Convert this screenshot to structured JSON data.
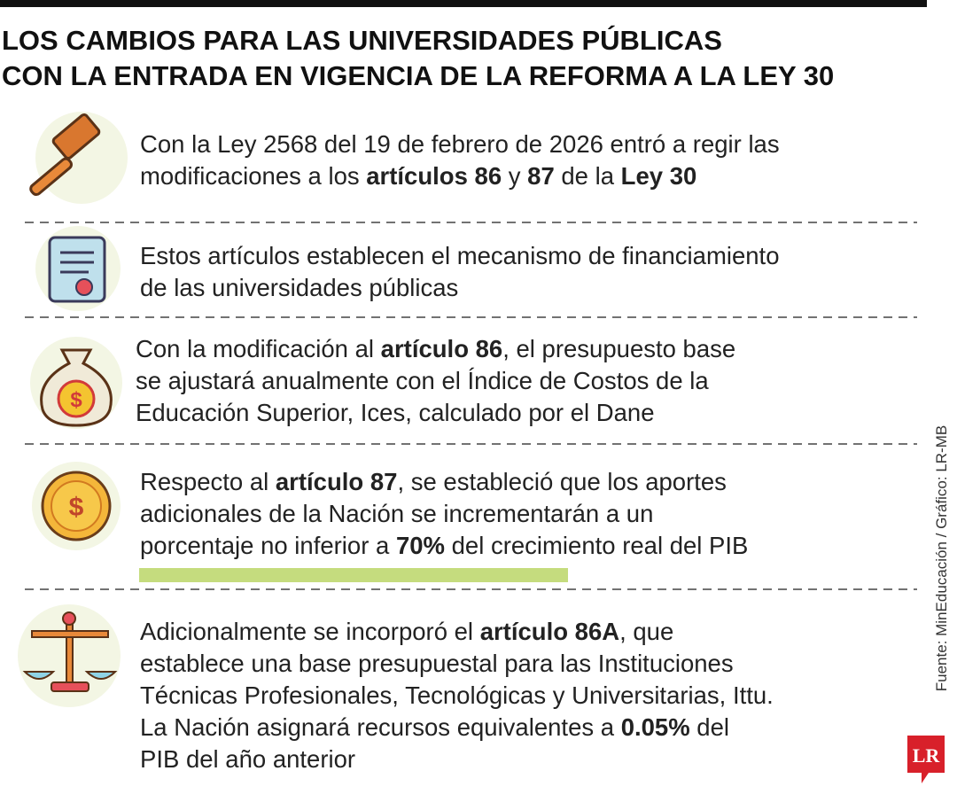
{
  "header": {
    "title_lines": [
      "LOS CAMBIOS PARA LAS UNIVERSIDADES PÚBLICAS",
      "CON LA ENTRADA EN VIGENCIA DE LA REFORMA A LA LEY 30"
    ]
  },
  "items": [
    {
      "lines": [
        [
          {
            "text": "Con la Ley 2568 del 19 de febrero de 2026 entró a regir las"
          }
        ],
        [
          {
            "text": "modificaciones a los "
          },
          {
            "text": "artículos 86",
            "bold": true
          },
          {
            "text": " y "
          },
          {
            "text": "87",
            "bold": true
          },
          {
            "text": " de la "
          },
          {
            "text": "Ley 30",
            "bold": true
          }
        ]
      ]
    },
    {
      "lines": [
        [
          {
            "text": "Estos artículos establecen el mecanismo de financiamiento"
          }
        ],
        [
          {
            "text": "de las universidades públicas"
          }
        ]
      ]
    },
    {
      "lines": [
        [
          {
            "text": "Con la modificación al "
          },
          {
            "text": "artículo 86",
            "bold": true
          },
          {
            "text": ", el presupuesto base"
          }
        ],
        [
          {
            "text": "se ajustará anualmente con el Índice de Costos de la"
          }
        ],
        [
          {
            "text": "Educación Superior, Ices, calculado por el Dane"
          }
        ]
      ]
    },
    {
      "lines": [
        [
          {
            "text": "Respecto al "
          },
          {
            "text": "artículo 87",
            "bold": true
          },
          {
            "text": ", se estableció que los aportes"
          }
        ],
        [
          {
            "text": "adicionales de la Nación se incrementarán a un"
          }
        ],
        [
          {
            "text": "porcentaje no inferior a "
          },
          {
            "text": "70%",
            "bold": true
          },
          {
            "text": " del crecimiento real del PIB"
          }
        ]
      ]
    },
    {
      "lines": [
        [
          {
            "text": "Adicionalmente se incorporó el "
          },
          {
            "text": "artículo 86A",
            "bold": true
          },
          {
            "text": ", que"
          }
        ],
        [
          {
            "text": "establece una base presupuestal para las Instituciones"
          }
        ],
        [
          {
            "text": "Técnicas Profesionales, Tecnológicas y Universitarias, Ittu."
          }
        ],
        [
          {
            "text": "La Nación asignará recursos equivalentes a "
          },
          {
            "text": "0.05%",
            "bold": true
          },
          {
            "text": " del"
          }
        ],
        [
          {
            "text": "PIB del año anterior"
          }
        ]
      ]
    }
  ],
  "footer": {
    "source": "Fuente: MinEducación / Gráfico: LR-MB",
    "logo": "LR"
  }
}
